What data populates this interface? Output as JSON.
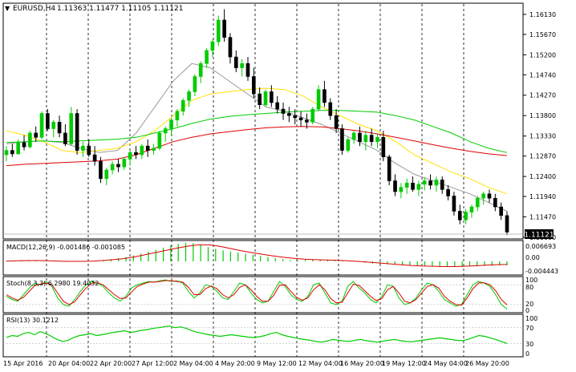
{
  "header": {
    "symbol": "EURUSD,H4",
    "ohlc": "1.11363 1.11477 1.11105 1.11121",
    "current_price": "1.11121"
  },
  "colors": {
    "bull": "#00cc00",
    "bear": "#000000",
    "ma_fast": "#999999",
    "ma_mid": "#ffe100",
    "ma_slow": "#00cc00",
    "ma_long": "#dd0000",
    "grid": "#000000",
    "osc_green": "#00cc00",
    "osc_red": "#dd0000"
  },
  "main_panel": {
    "price_range": [
      1.11,
      1.1635
    ],
    "price_ticks": [
      "1.16130",
      "1.15670",
      "1.15200",
      "1.14740",
      "1.14270",
      "1.13800",
      "1.13330",
      "1.12870",
      "1.12400",
      "1.11940",
      "1.11470",
      "1.11000"
    ]
  },
  "macd_panel": {
    "label": "MACD(12,26,9) -0.001486 -0.001085",
    "ticks": [
      "0.006693",
      "0.00",
      "-0.004443"
    ]
  },
  "stoch_panel": {
    "label": "Stoch(8,3,3) 6.2980 19.4032",
    "ticks": [
      "100",
      "80",
      "20",
      "0"
    ]
  },
  "rsi_panel": {
    "label": "RSI(13) 30.1212",
    "ticks": [
      "100",
      "70",
      "30",
      "0"
    ]
  },
  "time_axis": {
    "labels": [
      "15 Apr 2016",
      "20 Apr 04:00",
      "22 Apr 20:00",
      "27 Apr 12:00",
      "2 May 04:00",
      "4 May 20:00",
      "9 May 12:00",
      "12 May 04:00",
      "16 May 20:00",
      "19 May 12:00",
      "24 May 04:00",
      "26 May 20:00"
    ]
  },
  "chart_data": {
    "type": "candlestick",
    "title": "EURUSD,H4",
    "ylim": [
      1.11,
      1.1635
    ],
    "ma_labels": [],
    "candles": [
      [
        1.129,
        1.131,
        1.1275,
        1.13
      ],
      [
        1.13,
        1.1315,
        1.1285,
        1.1292
      ],
      [
        1.1292,
        1.1325,
        1.129,
        1.1318
      ],
      [
        1.1318,
        1.1335,
        1.13,
        1.1308
      ],
      [
        1.1308,
        1.1345,
        1.1305,
        1.134
      ],
      [
        1.134,
        1.1355,
        1.132,
        1.133
      ],
      [
        1.133,
        1.139,
        1.1325,
        1.1385
      ],
      [
        1.1385,
        1.1395,
        1.1345,
        1.135
      ],
      [
        1.135,
        1.137,
        1.133,
        1.1365
      ],
      [
        1.1365,
        1.138,
        1.133,
        1.134
      ],
      [
        1.134,
        1.136,
        1.131,
        1.1315
      ],
      [
        1.1315,
        1.14,
        1.131,
        1.1385
      ],
      [
        1.1385,
        1.1395,
        1.129,
        1.13
      ],
      [
        1.13,
        1.132,
        1.1285,
        1.131
      ],
      [
        1.131,
        1.1325,
        1.1285,
        1.129
      ],
      [
        1.129,
        1.131,
        1.1265,
        1.1275
      ],
      [
        1.1275,
        1.1285,
        1.1225,
        1.1235
      ],
      [
        1.1235,
        1.126,
        1.122,
        1.1255
      ],
      [
        1.1255,
        1.1275,
        1.1245,
        1.1268
      ],
      [
        1.1268,
        1.128,
        1.125,
        1.1262
      ],
      [
        1.1262,
        1.1285,
        1.1255,
        1.128
      ],
      [
        1.128,
        1.13,
        1.1265,
        1.1295
      ],
      [
        1.1295,
        1.131,
        1.128,
        1.129
      ],
      [
        1.129,
        1.1315,
        1.128,
        1.131
      ],
      [
        1.131,
        1.1325,
        1.1285,
        1.13
      ],
      [
        1.13,
        1.1315,
        1.129,
        1.1305
      ],
      [
        1.1305,
        1.1345,
        1.13,
        1.134
      ],
      [
        1.134,
        1.1355,
        1.132,
        1.135
      ],
      [
        1.135,
        1.1375,
        1.1335,
        1.137
      ],
      [
        1.137,
        1.1395,
        1.1355,
        1.139
      ],
      [
        1.139,
        1.142,
        1.138,
        1.1415
      ],
      [
        1.1415,
        1.144,
        1.14,
        1.1435
      ],
      [
        1.1435,
        1.1475,
        1.1425,
        1.147
      ],
      [
        1.147,
        1.1505,
        1.1455,
        1.15
      ],
      [
        1.15,
        1.1535,
        1.149,
        1.153
      ],
      [
        1.153,
        1.1555,
        1.1515,
        1.155
      ],
      [
        1.155,
        1.161,
        1.154,
        1.16
      ],
      [
        1.16,
        1.1625,
        1.155,
        1.156
      ],
      [
        1.156,
        1.157,
        1.15,
        1.1515
      ],
      [
        1.1515,
        1.153,
        1.148,
        1.149
      ],
      [
        1.149,
        1.151,
        1.147,
        1.15
      ],
      [
        1.15,
        1.1515,
        1.146,
        1.147
      ],
      [
        1.147,
        1.149,
        1.142,
        1.143
      ],
      [
        1.143,
        1.1445,
        1.1395,
        1.1405
      ],
      [
        1.1405,
        1.144,
        1.14,
        1.1435
      ],
      [
        1.1435,
        1.145,
        1.14,
        1.141
      ],
      [
        1.141,
        1.1425,
        1.1385,
        1.1395
      ],
      [
        1.1395,
        1.141,
        1.137,
        1.1385
      ],
      [
        1.1385,
        1.14,
        1.1365,
        1.138
      ],
      [
        1.138,
        1.1395,
        1.136,
        1.1375
      ],
      [
        1.1375,
        1.139,
        1.1355,
        1.137
      ],
      [
        1.137,
        1.1385,
        1.135,
        1.1365
      ],
      [
        1.1365,
        1.14,
        1.136,
        1.1395
      ],
      [
        1.1395,
        1.145,
        1.139,
        1.144
      ],
      [
        1.144,
        1.146,
        1.14,
        1.141
      ],
      [
        1.141,
        1.142,
        1.137,
        1.138
      ],
      [
        1.138,
        1.1395,
        1.134,
        1.135
      ],
      [
        1.135,
        1.136,
        1.129,
        1.13
      ],
      [
        1.13,
        1.133,
        1.1295,
        1.1325
      ],
      [
        1.1325,
        1.1345,
        1.1315,
        1.134
      ],
      [
        1.134,
        1.1355,
        1.131,
        1.132
      ],
      [
        1.132,
        1.1345,
        1.13,
        1.1335
      ],
      [
        1.1335,
        1.135,
        1.131,
        1.132
      ],
      [
        1.132,
        1.134,
        1.1305,
        1.133
      ],
      [
        1.133,
        1.1345,
        1.1275,
        1.1285
      ],
      [
        1.1285,
        1.129,
        1.122,
        1.123
      ],
      [
        1.123,
        1.1245,
        1.1195,
        1.1205
      ],
      [
        1.1205,
        1.1225,
        1.119,
        1.1215
      ],
      [
        1.1215,
        1.1235,
        1.12,
        1.1225
      ],
      [
        1.1225,
        1.124,
        1.1205,
        1.121
      ],
      [
        1.121,
        1.123,
        1.1195,
        1.1222
      ],
      [
        1.1222,
        1.1238,
        1.1208,
        1.123
      ],
      [
        1.123,
        1.1245,
        1.121,
        1.122
      ],
      [
        1.122,
        1.124,
        1.1205,
        1.1232
      ],
      [
        1.1232,
        1.124,
        1.12,
        1.121
      ],
      [
        1.121,
        1.122,
        1.1185,
        1.1195
      ],
      [
        1.1195,
        1.1205,
        1.115,
        1.116
      ],
      [
        1.116,
        1.1175,
        1.113,
        1.114
      ],
      [
        1.114,
        1.1165,
        1.113,
        1.1158
      ],
      [
        1.1158,
        1.1175,
        1.1145,
        1.117
      ],
      [
        1.117,
        1.1195,
        1.116,
        1.119
      ],
      [
        1.119,
        1.1205,
        1.1175,
        1.12
      ],
      [
        1.12,
        1.121,
        1.118,
        1.119
      ],
      [
        1.119,
        1.12,
        1.116,
        1.117
      ],
      [
        1.117,
        1.118,
        1.114,
        1.115
      ],
      [
        1.115,
        1.116,
        1.1105,
        1.1112
      ]
    ],
    "moving_averages": [
      {
        "name": "",
        "color": "#999999",
        "values": [
          1.1315,
          1.132,
          1.1322,
          1.1318,
          1.1305,
          1.1295,
          1.13,
          1.134,
          1.14,
          1.146,
          1.15,
          1.149,
          1.146,
          1.143,
          1.14,
          1.139,
          1.1375,
          1.136,
          1.134,
          1.132,
          1.13,
          1.127,
          1.1245,
          1.123,
          1.1215,
          1.12,
          1.118,
          1.116
        ]
      },
      {
        "name": "",
        "color": "#ffe100",
        "values": [
          1.1345,
          1.1335,
          1.132,
          1.13,
          1.1295,
          1.13,
          1.1305,
          1.132,
          1.1345,
          1.138,
          1.1415,
          1.143,
          1.1435,
          1.144,
          1.1443,
          1.144,
          1.1425,
          1.14,
          1.138,
          1.136,
          1.1345,
          1.132,
          1.129,
          1.127,
          1.125,
          1.1235,
          1.1215,
          1.12
        ]
      },
      {
        "name": "",
        "color": "#00cc00",
        "values": [
          1.1318,
          1.132,
          1.1322,
          1.132,
          1.1322,
          1.1324,
          1.1326,
          1.133,
          1.134,
          1.135,
          1.1362,
          1.1372,
          1.1378,
          1.1382,
          1.1385,
          1.1388,
          1.139,
          1.1392,
          1.1392,
          1.139,
          1.1388,
          1.138,
          1.137,
          1.1355,
          1.134,
          1.132,
          1.1305,
          1.1295
        ]
      },
      {
        "name": "",
        "color": "#dd0000",
        "values": [
          1.1265,
          1.1268,
          1.127,
          1.1272,
          1.1274,
          1.1276,
          1.128,
          1.129,
          1.1305,
          1.132,
          1.133,
          1.1338,
          1.1343,
          1.1348,
          1.1352,
          1.1354,
          1.1355,
          1.1354,
          1.135,
          1.1345,
          1.1338,
          1.133,
          1.1322,
          1.1313,
          1.1305,
          1.1298,
          1.1292,
          1.1288
        ]
      }
    ],
    "macd_histogram": [
      0.0002,
      0.0003,
      0.0004,
      0.0003,
      0.0002,
      0.0001,
      0.0,
      -0.0001,
      -0.0002,
      -0.0001,
      0.0,
      0.0001,
      0.0003,
      0.0005,
      0.0008,
      0.0012,
      0.0016,
      0.0022,
      0.0028,
      0.0035,
      0.0042,
      0.005,
      0.0058,
      0.0064,
      0.0067,
      0.0066,
      0.006,
      0.0052,
      0.0045,
      0.004,
      0.0036,
      0.0032,
      0.0028,
      0.0024,
      0.002,
      0.0016,
      0.0012,
      0.0008,
      0.0005,
      0.0004,
      0.0006,
      0.0008,
      0.0007,
      0.0005,
      0.0003,
      0.0002,
      0.0001,
      -0.0002,
      -0.0005,
      -0.0008,
      -0.001,
      -0.0011,
      -0.0012,
      -0.0013,
      -0.0014,
      -0.0015,
      -0.0016,
      -0.0018,
      -0.0019,
      -0.002,
      -0.002,
      -0.002,
      -0.0019,
      -0.0018,
      -0.0017,
      -0.0016,
      -0.0015,
      -0.0015
    ],
    "macd_signal": [
      0.0001,
      0.0002,
      0.0003,
      0.0003,
      0.0002,
      0.0001,
      0.0,
      0.0,
      0.0001,
      0.0003,
      0.0006,
      0.001,
      0.0016,
      0.0024,
      0.0032,
      0.004,
      0.0048,
      0.0055,
      0.006,
      0.006,
      0.0055,
      0.0047,
      0.0039,
      0.0032,
      0.0026,
      0.002,
      0.0015,
      0.0011,
      0.0008,
      0.0006,
      0.0005,
      0.0004,
      0.0002,
      0.0,
      -0.0003,
      -0.0006,
      -0.0009,
      -0.0012,
      -0.0015,
      -0.0017,
      -0.0018,
      -0.0019,
      -0.0019,
      -0.0018,
      -0.0016,
      -0.0014,
      -0.0012,
      -0.0011
    ],
    "stoch_k": [
      45,
      35,
      30,
      50,
      70,
      85,
      80,
      90,
      75,
      40,
      20,
      15,
      35,
      60,
      80,
      90,
      85,
      75,
      55,
      40,
      30,
      45,
      70,
      80,
      85,
      90,
      88,
      92,
      95,
      90,
      92,
      85,
      60,
      40,
      55,
      80,
      75,
      60,
      40,
      35,
      60,
      85,
      80,
      55,
      35,
      25,
      30,
      60,
      90,
      75,
      50,
      35,
      30,
      45,
      80,
      85,
      55,
      25,
      20,
      30,
      75,
      90,
      70,
      55,
      35,
      25,
      45,
      80,
      75,
      40,
      20,
      25,
      40,
      65,
      85,
      80,
      60,
      35,
      25,
      15,
      20,
      50,
      80,
      90,
      85,
      75,
      50,
      20,
      6
    ],
    "stoch_d": [
      50,
      40,
      33,
      42,
      60,
      78,
      82,
      85,
      80,
      55,
      30,
      20,
      28,
      50,
      70,
      85,
      86,
      80,
      65,
      50,
      38,
      40,
      58,
      75,
      82,
      88,
      88,
      90,
      93,
      92,
      90,
      88,
      72,
      50,
      50,
      68,
      76,
      68,
      50,
      40,
      50,
      72,
      80,
      65,
      45,
      30,
      30,
      48,
      78,
      80,
      60,
      42,
      33,
      40,
      65,
      80,
      65,
      38,
      25,
      27,
      55,
      82,
      78,
      62,
      45,
      32,
      38,
      65,
      75,
      55,
      30,
      25,
      35,
      55,
      75,
      80,
      70,
      45,
      30,
      20,
      18,
      40,
      68,
      85,
      86,
      80,
      62,
      35,
      19
    ],
    "rsi": [
      45,
      50,
      48,
      55,
      58,
      52,
      60,
      55,
      48,
      40,
      35,
      38,
      45,
      50,
      52,
      55,
      50,
      52,
      55,
      58,
      60,
      62,
      58,
      60,
      63,
      65,
      68,
      70,
      72,
      74,
      70,
      72,
      68,
      62,
      58,
      55,
      52,
      50,
      48,
      50,
      52,
      50,
      48,
      46,
      45,
      47,
      50,
      55,
      58,
      52,
      48,
      45,
      42,
      40,
      38,
      35,
      33,
      36,
      40,
      38,
      36,
      35,
      38,
      40,
      37,
      35,
      33,
      36,
      38,
      40,
      37,
      35,
      34,
      36,
      38,
      40,
      42,
      44,
      42,
      40,
      38,
      37,
      40,
      45,
      50,
      48,
      44,
      40,
      35,
      30
    ]
  }
}
